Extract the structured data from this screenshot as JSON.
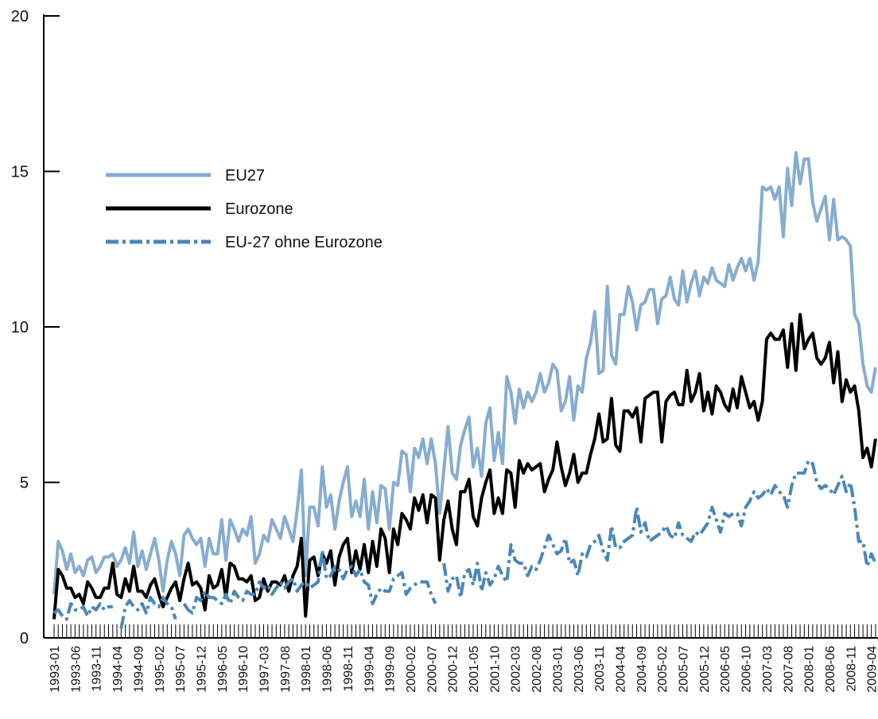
{
  "chart_data": {
    "type": "line",
    "categories": [
      "1993-01",
      null,
      null,
      null,
      null,
      "1993-06",
      null,
      null,
      null,
      null,
      "1993-11",
      null,
      null,
      null,
      null,
      "1994-04",
      null,
      null,
      null,
      null,
      "1994-09",
      null,
      null,
      null,
      null,
      "1995-02",
      null,
      null,
      null,
      null,
      "1995-07",
      null,
      null,
      null,
      null,
      "1995-12",
      null,
      null,
      null,
      null,
      "1996-05",
      null,
      null,
      null,
      null,
      "1996-10",
      null,
      null,
      null,
      null,
      "1997-03",
      null,
      null,
      null,
      null,
      "1997-08",
      null,
      null,
      null,
      null,
      "1998-01",
      null,
      null,
      null,
      null,
      "1998-06",
      null,
      null,
      null,
      null,
      "1998-11",
      null,
      null,
      null,
      null,
      "1999-04",
      null,
      null,
      null,
      null,
      "1999-09",
      null,
      null,
      null,
      null,
      "2000-02",
      null,
      null,
      null,
      null,
      "2000-07",
      null,
      null,
      null,
      null,
      "2000-12",
      null,
      null,
      null,
      null,
      "2001-05",
      null,
      null,
      null,
      null,
      "2001-10",
      null,
      null,
      null,
      null,
      "2002-03",
      null,
      null,
      null,
      null,
      "2002-08",
      null,
      null,
      null,
      null,
      "2003-01",
      null,
      null,
      null,
      null,
      "2003-06",
      null,
      null,
      null,
      null,
      "2003-11",
      null,
      null,
      null,
      null,
      "2004-04",
      null,
      null,
      null,
      null,
      "2004-09",
      null,
      null,
      null,
      null,
      "2005-02",
      null,
      null,
      null,
      null,
      "2005-07",
      null,
      null,
      null,
      null,
      "2005-12",
      null,
      null,
      null,
      null,
      "2006-05",
      null,
      null,
      null,
      null,
      "2006-10",
      null,
      null,
      null,
      null,
      "2007-03",
      null,
      null,
      null,
      null,
      "2007-08",
      null,
      null,
      null,
      null,
      "2008-01",
      null,
      null,
      null,
      null,
      "2008-06",
      null,
      null,
      null,
      null,
      "2008-11",
      null,
      null,
      null,
      null,
      "2009-04",
      null
    ],
    "series": [
      {
        "name": "EU27",
        "color": "#86add0",
        "dash": "solid",
        "values": [
          1.4,
          3.1,
          2.8,
          2.2,
          2.7,
          2.1,
          2.3,
          2.0,
          2.5,
          2.6,
          2.1,
          2.3,
          2.6,
          2.6,
          2.7,
          2.3,
          2.5,
          2.9,
          2.4,
          3.4,
          2.3,
          2.8,
          2.2,
          2.7,
          3.2,
          2.5,
          1.5,
          2.5,
          3.1,
          2.7,
          2.0,
          3.3,
          3.5,
          3.2,
          3.0,
          3.2,
          2.3,
          3.2,
          2.7,
          2.7,
          3.8,
          2.5,
          3.8,
          3.5,
          3.1,
          3.5,
          3.3,
          3.9,
          2.4,
          2.7,
          3.3,
          3.1,
          3.8,
          3.5,
          3.2,
          3.9,
          3.5,
          3.1,
          4.1,
          5.4,
          2.0,
          4.2,
          4.2,
          3.6,
          5.5,
          4.2,
          4.6,
          3.5,
          4.4,
          5.0,
          5.5,
          3.9,
          4.4,
          3.9,
          5.1,
          3.5,
          4.7,
          3.7,
          4.9,
          4.8,
          3.5,
          5.0,
          4.9,
          6.0,
          5.9,
          4.7,
          6.1,
          5.8,
          6.4,
          5.6,
          6.4,
          5.6,
          4.0,
          5.4,
          6.8,
          5.3,
          5.1,
          6.2,
          6.7,
          7.1,
          5.5,
          6.1,
          5.2,
          6.9,
          7.4,
          5.7,
          6.6,
          5.6,
          8.4,
          7.9,
          6.9,
          8.0,
          7.4,
          7.9,
          7.6,
          7.9,
          8.5,
          7.9,
          8.2,
          8.8,
          8.6,
          7.3,
          7.6,
          8.4,
          7.0,
          8.1,
          7.9,
          9.0,
          9.5,
          10.5,
          8.5,
          8.6,
          11.3,
          9.1,
          8.8,
          10.4,
          10.4,
          11.3,
          10.8,
          9.9,
          10.7,
          10.8,
          11.2,
          11.2,
          10.1,
          10.9,
          11.0,
          11.6,
          10.9,
          10.7,
          11.8,
          10.8,
          11.4,
          11.8,
          11.0,
          11.6,
          11.4,
          11.9,
          11.5,
          11.4,
          11.3,
          12.0,
          11.5,
          11.9,
          12.2,
          11.8,
          12.2,
          11.5,
          12.1,
          14.5,
          14.4,
          14.5,
          14.1,
          14.5,
          12.9,
          15.1,
          13.9,
          15.6,
          14.6,
          15.4,
          15.4,
          14.0,
          13.4,
          13.8,
          14.2,
          12.8,
          14.1,
          12.8,
          12.9,
          12.8,
          12.6,
          10.4,
          10.1,
          8.8,
          8.1,
          7.9,
          8.7
        ]
      },
      {
        "name": "Eurozone",
        "color": "#000000",
        "dash": "solid",
        "values": [
          0.6,
          2.2,
          2.0,
          1.6,
          1.6,
          1.3,
          1.4,
          1.1,
          1.8,
          1.6,
          1.3,
          1.3,
          1.6,
          1.6,
          2.4,
          1.4,
          1.3,
          1.9,
          1.5,
          2.3,
          1.5,
          1.5,
          1.3,
          1.7,
          1.9,
          1.4,
          1.0,
          1.3,
          1.6,
          1.8,
          1.2,
          1.9,
          2.4,
          1.7,
          1.8,
          1.6,
          0.9,
          2.0,
          1.6,
          1.7,
          2.2,
          1.3,
          2.4,
          2.3,
          1.9,
          1.9,
          1.8,
          2.0,
          1.2,
          1.3,
          1.9,
          1.5,
          1.8,
          1.8,
          1.7,
          2.0,
          1.5,
          2.0,
          2.3,
          3.2,
          0.7,
          2.5,
          2.6,
          2.0,
          2.7,
          2.4,
          2.8,
          1.7,
          2.6,
          3.0,
          3.2,
          2.1,
          2.8,
          2.2,
          3.0,
          2.1,
          3.1,
          2.3,
          3.5,
          3.2,
          2.1,
          3.5,
          3.0,
          4.0,
          3.8,
          3.5,
          4.5,
          4.1,
          4.6,
          3.7,
          4.6,
          4.5,
          2.5,
          3.8,
          4.4,
          3.5,
          3.0,
          4.7,
          4.7,
          5.1,
          3.9,
          3.6,
          4.5,
          5.0,
          5.4,
          4.0,
          4.5,
          4.0,
          5.4,
          5.3,
          4.2,
          5.7,
          5.3,
          5.6,
          5.4,
          5.5,
          5.6,
          4.7,
          5.1,
          5.4,
          6.3,
          5.5,
          4.9,
          5.3,
          5.9,
          5.0,
          5.3,
          5.3,
          5.9,
          6.4,
          7.2,
          6.3,
          6.4,
          7.7,
          6.2,
          6.0,
          7.3,
          7.3,
          7.1,
          7.4,
          6.3,
          7.7,
          7.8,
          7.9,
          7.9,
          6.3,
          7.6,
          7.8,
          7.9,
          7.5,
          7.5,
          8.6,
          7.6,
          7.9,
          8.5,
          7.3,
          7.9,
          7.2,
          8.1,
          7.9,
          7.5,
          7.3,
          8.0,
          7.4,
          8.4,
          7.9,
          7.4,
          7.6,
          7.0,
          7.6,
          9.6,
          9.8,
          9.6,
          9.6,
          9.9,
          8.7,
          10.1,
          8.6,
          10.4,
          9.3,
          9.6,
          9.8,
          9.0,
          8.8,
          9.0,
          9.5,
          8.2,
          9.2,
          7.6,
          8.3,
          7.9,
          8.1,
          7.3,
          5.8,
          6.1,
          5.5,
          6.4
        ]
      },
      {
        "name": "EU-27 ohne Eurozone",
        "color": "#4a87b8",
        "dash": "dashdot",
        "values": [
          0.8,
          0.9,
          0.7,
          0.6,
          1.1,
          0.9,
          0.9,
          1.0,
          0.7,
          1.0,
          0.9,
          1.1,
          0.9,
          1.0,
          1.0,
          null,
          0.3,
          1.0,
          1.2,
          1.0,
          0.9,
          1.1,
          0.8,
          1.3,
          1.1,
          1.0,
          1.3,
          1.1,
          1.0,
          0.6,
          null,
          1.1,
          0.9,
          0.8,
          1.3,
          1.2,
          1.5,
          1.3,
          1.3,
          1.2,
          1.1,
          1.4,
          1.1,
          1.5,
          1.3,
          1.2,
          1.5,
          1.4,
          1.4,
          1.8,
          1.6,
          1.7,
          1.4,
          1.6,
          1.8,
          1.6,
          1.8,
          1.9,
          1.5,
          1.7,
          1.8,
          1.6,
          1.7,
          1.8,
          2.8,
          1.9,
          2.0,
          2.3,
          2.2,
          1.9,
          2.2,
          2.3,
          2.0,
          2.2,
          1.8,
          1.7,
          1.1,
          1.4,
          1.6,
          1.5,
          1.5,
          1.9,
          2.0,
          2.1,
          1.4,
          1.6,
          1.7,
          1.8,
          1.8,
          1.8,
          1.4,
          1.1,
          null,
          2.4,
          1.5,
          1.9,
          2.0,
          1.3,
          2.1,
          2.2,
          1.7,
          2.4,
          1.5,
          2.1,
          1.7,
          1.9,
          2.3,
          2.0,
          1.8,
          3.0,
          2.5,
          2.4,
          2.4,
          2.0,
          2.3,
          2.2,
          2.5,
          2.9,
          3.3,
          3.0,
          2.7,
          2.8,
          3.2,
          2.4,
          2.5,
          2.0,
          2.7,
          2.6,
          3.0,
          3.1,
          3.3,
          2.8,
          2.5,
          3.6,
          2.9,
          2.9,
          3.1,
          3.2,
          3.3,
          4.2,
          3.4,
          3.7,
          3.1,
          3.2,
          3.3,
          3.4,
          3.6,
          3.3,
          3.2,
          3.7,
          3.3,
          3.2,
          3.1,
          3.4,
          3.3,
          3.5,
          3.7,
          4.2,
          3.8,
          3.4,
          4.0,
          3.9,
          4.0,
          4.0,
          3.6,
          4.2,
          4.4,
          4.7,
          4.5,
          4.6,
          4.8,
          4.6,
          4.9,
          4.7,
          4.6,
          4.2,
          4.9,
          5.3,
          5.3,
          5.3,
          5.7,
          5.6,
          5.0,
          4.8,
          4.9,
          4.8,
          4.6,
          4.9,
          5.2,
          4.7,
          5.0,
          4.2,
          3.1,
          3.1,
          2.3,
          2.7,
          2.4
        ]
      }
    ],
    "ylim": [
      0,
      20
    ],
    "yticks": [
      0,
      5,
      10,
      15,
      20
    ],
    "grid": false
  }
}
